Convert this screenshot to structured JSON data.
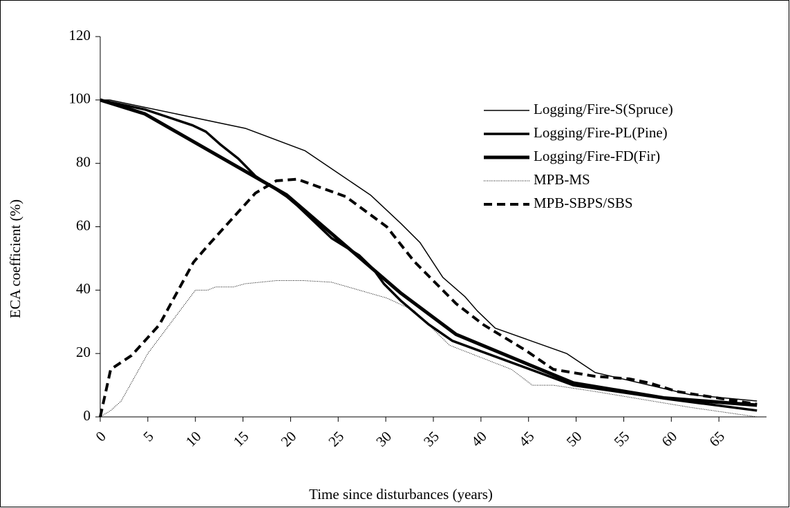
{
  "chart_data": {
    "type": "line",
    "x_label": "Time since disturbances (years)",
    "y_label": "ECA coefficient (%)",
    "xlim": [
      0,
      70
    ],
    "xticks": [
      0,
      5,
      10,
      15,
      20,
      25,
      30,
      35,
      40,
      45,
      50,
      55,
      60,
      65
    ],
    "ylim": [
      0,
      120
    ],
    "yticks": [
      0,
      20,
      40,
      60,
      80,
      100,
      120
    ],
    "grid": false,
    "legend": "upper-right",
    "series": [
      {
        "name": "Logging/Fire-S(Spruce)",
        "color": "#000000",
        "style": "thin",
        "x": [
          0,
          1,
          15.3,
          21.5,
          28.4,
          31.6,
          33.6,
          36,
          38.3,
          39.6,
          41.5,
          49,
          52,
          62,
          69
        ],
        "values": [
          100,
          100,
          91,
          84,
          70,
          61,
          55,
          44,
          38,
          33.5,
          28,
          20,
          14,
          7,
          5
        ]
      },
      {
        "name": "Logging/Fire-PL(Pine)",
        "color": "#000000",
        "style": "medium",
        "x": [
          0,
          4.7,
          9.7,
          11.1,
          12.6,
          14.5,
          16.3,
          18.5,
          19.6,
          20.7,
          24.3,
          27.2,
          28.7,
          29.8,
          31.6,
          34.5,
          37,
          49.7,
          60,
          69
        ],
        "values": [
          100,
          97,
          92,
          90,
          86,
          81.5,
          76,
          71.7,
          69.5,
          66.7,
          56.4,
          51,
          46.6,
          42,
          36.6,
          29.2,
          24,
          10,
          5.5,
          2
        ]
      },
      {
        "name": "Logging/Fire-FD(Fir)",
        "color": "#000000",
        "style": "thick",
        "x": [
          0,
          4.7,
          19.6,
          31.6,
          37.4,
          49.7,
          59.2,
          69
        ],
        "values": [
          100,
          95.6,
          70,
          39,
          26,
          10.7,
          6,
          3.7
        ]
      },
      {
        "name": "MPB-MS",
        "color": "#000000",
        "style": "dotted",
        "x": [
          0,
          1.1,
          2.2,
          5,
          10,
          11.3,
          12.1,
          14,
          15.2,
          18.5,
          21.4,
          24.3,
          27.2,
          30.1,
          33,
          36.7,
          43.2,
          45.4,
          47.6,
          52,
          62,
          69
        ],
        "values": [
          0,
          2,
          5,
          20,
          40,
          40,
          41,
          41,
          42,
          43,
          43,
          42.5,
          40,
          37.5,
          33.5,
          22.6,
          15,
          10,
          10,
          8,
          3,
          0
        ]
      },
      {
        "name": "MPB-SBPS/SBS",
        "color": "#000000",
        "style": "dashed",
        "x": [
          0,
          1.1,
          3.3,
          6.2,
          9.8,
          11.3,
          13.4,
          16.3,
          18.5,
          20.7,
          25.8,
          30.1,
          33,
          37.4,
          40.3,
          44.7,
          47.6,
          52,
          55.6,
          57.7,
          60.6,
          69
        ],
        "values": [
          0,
          15,
          19.4,
          29,
          48.8,
          54,
          61,
          70.6,
          74.5,
          75,
          69.5,
          60,
          49,
          35.7,
          29,
          21,
          15,
          12.8,
          12,
          10.7,
          8,
          4
        ]
      }
    ]
  }
}
